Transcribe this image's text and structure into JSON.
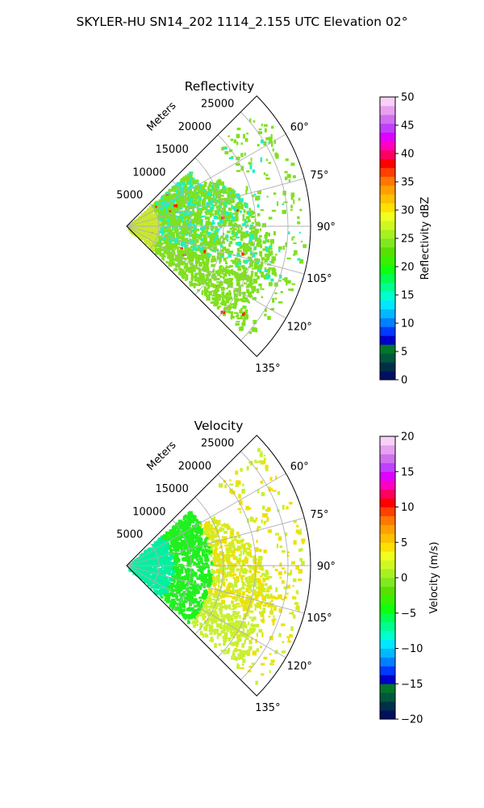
{
  "suptitle": "SKYLER-HU  SN14_202  1114_2.155 UTC Elevation 02°",
  "chart_data": [
    {
      "type": "heatmap",
      "subtype": "polar-sector-radar",
      "title": "Reflectivity",
      "range_label": "Meters",
      "range_ticks": [
        5000,
        10000,
        15000,
        20000,
        25000
      ],
      "range_tick_labels": [
        "5000",
        "10000",
        "15000",
        "20000",
        "25000"
      ],
      "rmax": 28500,
      "azimuth_limits_deg": [
        45,
        135
      ],
      "azimuth_ticks": [
        "60°",
        "75°",
        "90°",
        "105°",
        "120°",
        "135°"
      ],
      "grid": true,
      "colorbar": {
        "label": "Reflectivity dBZ",
        "vmin": 0,
        "vmax": 50,
        "ticks": [
          "0",
          "5",
          "10",
          "15",
          "20",
          "25",
          "30",
          "35",
          "40",
          "45",
          "50"
        ],
        "colors": [
          "#001060",
          "#003048",
          "#00583c",
          "#007828",
          "#0000c8",
          "#0038ff",
          "#0080ff",
          "#00b8ff",
          "#00e8ff",
          "#00ffd0",
          "#00ff90",
          "#00ff50",
          "#10ff10",
          "#38f000",
          "#58e000",
          "#80e820",
          "#a8f020",
          "#d0f820",
          "#f0ff20",
          "#ffe000",
          "#ffc000",
          "#ffa000",
          "#ff7800",
          "#ff4000",
          "#ff0000",
          "#ff0060",
          "#ff00c0",
          "#e000ff",
          "#c040ff",
          "#d070f0",
          "#e8a0f0",
          "#f8d0f8"
        ]
      },
      "field_description_colors": {
        "near_range": "#c8e830",
        "core": "#80e020",
        "low": "#20f0c0",
        "high": "#ff2000"
      }
    },
    {
      "type": "heatmap",
      "subtype": "polar-sector-radar",
      "title": "Velocity",
      "range_label": "Meters",
      "range_ticks": [
        5000,
        10000,
        15000,
        20000,
        25000
      ],
      "range_tick_labels": [
        "5000",
        "10000",
        "15000",
        "20000",
        "25000"
      ],
      "rmax": 28500,
      "azimuth_limits_deg": [
        45,
        135
      ],
      "azimuth_ticks": [
        "60°",
        "75°",
        "90°",
        "105°",
        "120°",
        "135°"
      ],
      "grid": true,
      "colorbar": {
        "label": "Velocity (m/s)",
        "vmin": -20,
        "vmax": 20,
        "ticks": [
          "−20",
          "−15",
          "−10",
          "−5",
          "0",
          "5",
          "10",
          "15",
          "20"
        ],
        "colors": [
          "#001060",
          "#003048",
          "#00583c",
          "#007828",
          "#0000c8",
          "#0038ff",
          "#0080ff",
          "#00b8ff",
          "#00e8ff",
          "#00ffd0",
          "#00ff90",
          "#00ff50",
          "#10ff10",
          "#38f000",
          "#58e000",
          "#80e820",
          "#a8f020",
          "#d0f820",
          "#f0ff20",
          "#ffe000",
          "#ffc000",
          "#ffa000",
          "#ff7800",
          "#ff4000",
          "#ff0000",
          "#ff0060",
          "#ff00c0",
          "#e000ff",
          "#c040ff",
          "#d070f0",
          "#e8a0f0",
          "#f8d0f8"
        ]
      },
      "field_description_colors": {
        "near_range": "#00f0a0",
        "core": "#20f020",
        "outer": "#c8f030",
        "far": "#f0e000"
      }
    }
  ]
}
